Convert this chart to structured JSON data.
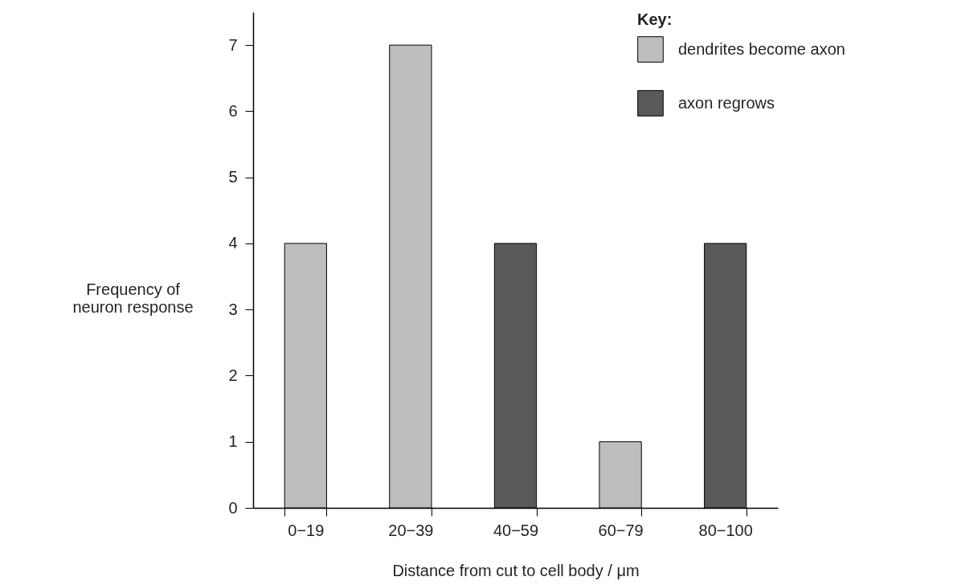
{
  "chart_data": {
    "type": "bar",
    "xlabel": "Distance from cut to cell body / μm",
    "ylabel": "Frequency of neuron response",
    "legend_title": "Key:",
    "categories": [
      "0−19",
      "20−39",
      "40−59",
      "60−79",
      "80−100"
    ],
    "series": [
      {
        "name": "dendrites become axon",
        "color": "#bcbec0",
        "values": [
          4,
          7,
          null,
          1,
          null
        ]
      },
      {
        "name": "axon regrows",
        "color": "#58595b",
        "values": [
          null,
          null,
          4,
          null,
          4
        ]
      }
    ],
    "ylim": [
      0,
      7.5
    ],
    "yticks": [
      0,
      1,
      2,
      3,
      4,
      5,
      6,
      7
    ],
    "grid": false,
    "legend": "top right"
  }
}
